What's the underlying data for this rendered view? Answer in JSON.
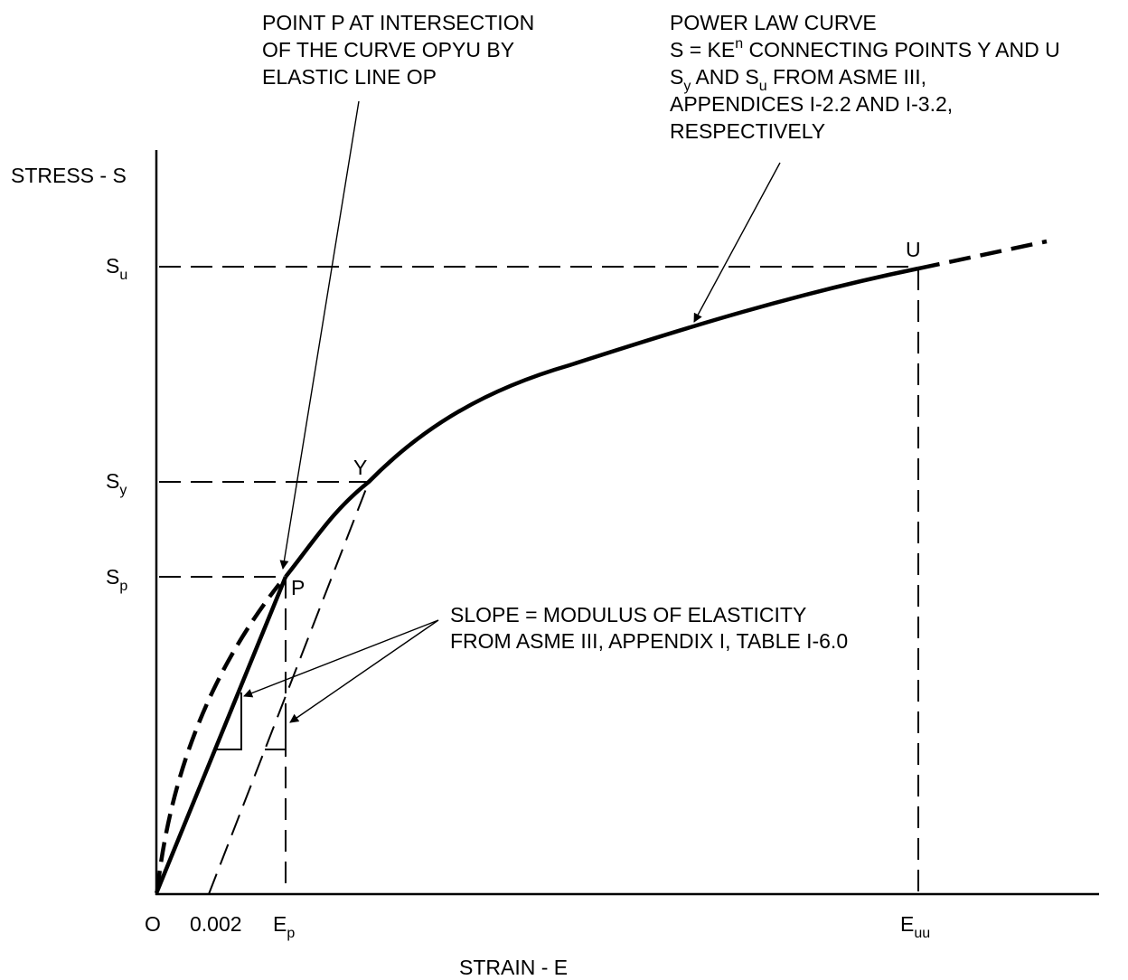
{
  "axes": {
    "y_label": "STRESS - S",
    "x_label": "STRAIN - E",
    "origin_label": "O",
    "offset_tick": "0.002"
  },
  "stress_ticks": {
    "ultimate": {
      "main": "S",
      "sub": "u"
    },
    "yield": {
      "main": "S",
      "sub": "y"
    },
    "proportional": {
      "main": "S",
      "sub": "p"
    }
  },
  "strain_ticks": {
    "proportional": {
      "main": "E",
      "sub": "p"
    },
    "ultimate": {
      "main": "E",
      "sub": "uu"
    }
  },
  "points": {
    "u": "U",
    "y": "Y",
    "p": "P"
  },
  "notes": {
    "point_p": [
      "POINT P AT INTERSECTION",
      "OF THE CURVE OPYU BY",
      "ELASTIC LINE OP"
    ],
    "power_law": {
      "line1": "POWER LAW CURVE",
      "line2_pre": "S = KE",
      "line2_sup": "n",
      "line2_post": " CONNECTING POINTS Y AND U",
      "line3_s1": "S",
      "line3_sub1": "y",
      "line3_mid": " AND S",
      "line3_sub2": "u",
      "line3_post": " FROM ASME III,",
      "line4": "APPENDICES I-2.2 AND I-3.2,",
      "line5": "RESPECTIVELY"
    },
    "slope": [
      "SLOPE = MODULUS OF ELASTICITY",
      "FROM ASME III, APPENDIX I, TABLE I-6.0"
    ]
  }
}
